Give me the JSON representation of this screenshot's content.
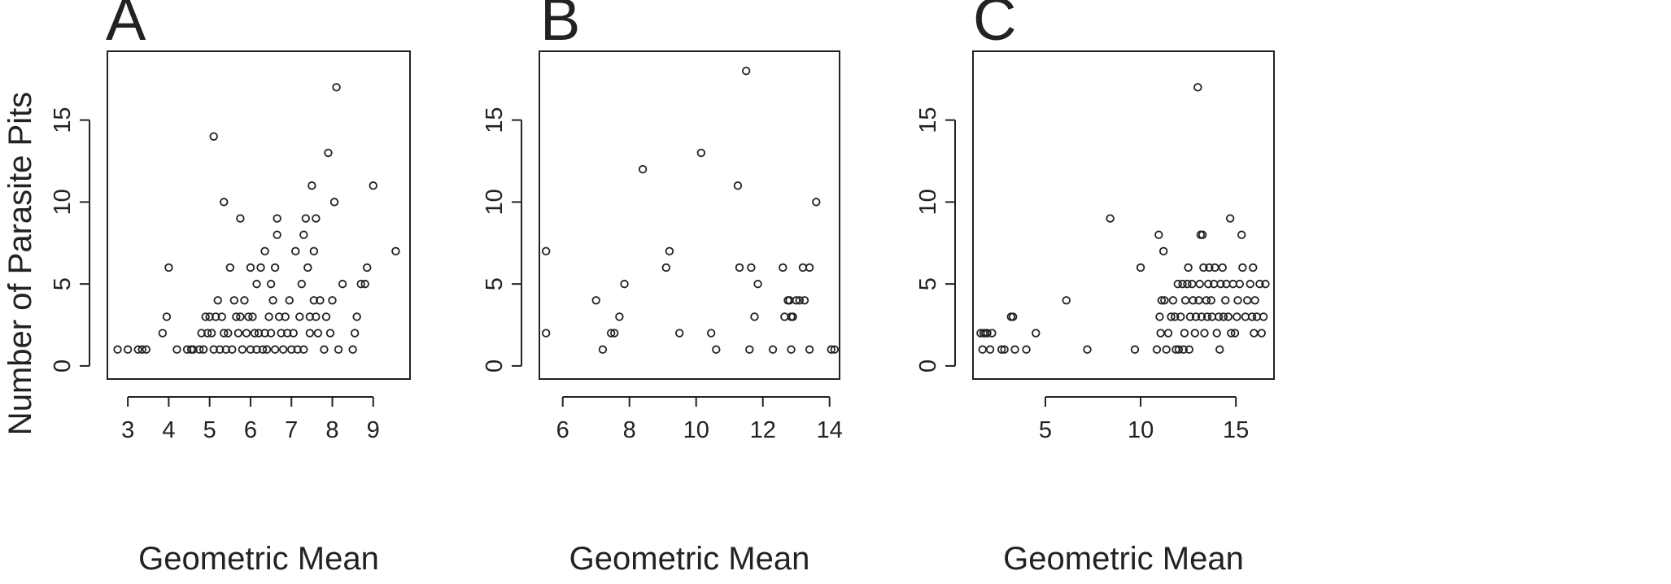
{
  "ylabel": "Number of Parasite Pits",
  "chart_data": [
    {
      "type": "scatter",
      "panel": "A",
      "xlabel": "Geometric Mean",
      "xlim": [
        2.5,
        9.9
      ],
      "ylim": [
        -0.8,
        19.2
      ],
      "xticks": [
        3,
        4,
        5,
        6,
        7,
        8,
        9
      ],
      "yticks": [
        0,
        5,
        10,
        15
      ],
      "points": [
        [
          2.75,
          1
        ],
        [
          3.0,
          1
        ],
        [
          3.25,
          1
        ],
        [
          3.35,
          1
        ],
        [
          3.45,
          1
        ],
        [
          3.85,
          2
        ],
        [
          3.95,
          3
        ],
        [
          4.0,
          6
        ],
        [
          4.2,
          1
        ],
        [
          4.45,
          1
        ],
        [
          4.55,
          1
        ],
        [
          4.6,
          1
        ],
        [
          4.75,
          1
        ],
        [
          4.8,
          2
        ],
        [
          4.85,
          1
        ],
        [
          4.9,
          3
        ],
        [
          4.95,
          2
        ],
        [
          5.0,
          3
        ],
        [
          5.05,
          2
        ],
        [
          5.1,
          1
        ],
        [
          5.1,
          14
        ],
        [
          5.15,
          3
        ],
        [
          5.2,
          4
        ],
        [
          5.25,
          1
        ],
        [
          5.3,
          3
        ],
        [
          5.35,
          10
        ],
        [
          5.35,
          2
        ],
        [
          5.4,
          1
        ],
        [
          5.45,
          2
        ],
        [
          5.5,
          6
        ],
        [
          5.55,
          1
        ],
        [
          5.6,
          4
        ],
        [
          5.65,
          3
        ],
        [
          5.7,
          2
        ],
        [
          5.75,
          9
        ],
        [
          5.75,
          3
        ],
        [
          5.8,
          1
        ],
        [
          5.85,
          4
        ],
        [
          5.9,
          2
        ],
        [
          5.95,
          3
        ],
        [
          6.0,
          6
        ],
        [
          6.0,
          1
        ],
        [
          6.05,
          3
        ],
        [
          6.1,
          2
        ],
        [
          6.15,
          1
        ],
        [
          6.15,
          5
        ],
        [
          6.2,
          2
        ],
        [
          6.25,
          6
        ],
        [
          6.3,
          1
        ],
        [
          6.35,
          2
        ],
        [
          6.35,
          7
        ],
        [
          6.4,
          1
        ],
        [
          6.45,
          3
        ],
        [
          6.5,
          5
        ],
        [
          6.5,
          2
        ],
        [
          6.55,
          4
        ],
        [
          6.6,
          6
        ],
        [
          6.6,
          1
        ],
        [
          6.65,
          9
        ],
        [
          6.65,
          8
        ],
        [
          6.7,
          3
        ],
        [
          6.75,
          2
        ],
        [
          6.8,
          1
        ],
        [
          6.85,
          3
        ],
        [
          6.9,
          2
        ],
        [
          6.95,
          4
        ],
        [
          7.0,
          1
        ],
        [
          7.05,
          2
        ],
        [
          7.1,
          7
        ],
        [
          7.15,
          1
        ],
        [
          7.2,
          3
        ],
        [
          7.25,
          5
        ],
        [
          7.3,
          1
        ],
        [
          7.3,
          8
        ],
        [
          7.35,
          9
        ],
        [
          7.4,
          6
        ],
        [
          7.45,
          3
        ],
        [
          7.45,
          2
        ],
        [
          7.5,
          11
        ],
        [
          7.55,
          7
        ],
        [
          7.55,
          4
        ],
        [
          7.6,
          3
        ],
        [
          7.6,
          9
        ],
        [
          7.65,
          2
        ],
        [
          7.7,
          4
        ],
        [
          7.8,
          1
        ],
        [
          7.85,
          3
        ],
        [
          7.9,
          13
        ],
        [
          7.95,
          2
        ],
        [
          8.0,
          4
        ],
        [
          8.05,
          10
        ],
        [
          8.1,
          17
        ],
        [
          8.15,
          1
        ],
        [
          8.25,
          5
        ],
        [
          8.5,
          1
        ],
        [
          8.55,
          2
        ],
        [
          8.6,
          3
        ],
        [
          8.7,
          5
        ],
        [
          8.8,
          5
        ],
        [
          8.85,
          6
        ],
        [
          9.0,
          11
        ],
        [
          9.55,
          7
        ]
      ]
    },
    {
      "type": "scatter",
      "panel": "B",
      "xlabel": "Geometric Mean",
      "xlim": [
        5.3,
        14.3
      ],
      "ylim": [
        -0.8,
        19.2
      ],
      "xticks": [
        6,
        8,
        10,
        12,
        14
      ],
      "yticks": [
        0,
        5,
        10,
        15
      ],
      "points": [
        [
          5.5,
          7
        ],
        [
          5.5,
          2
        ],
        [
          7.0,
          4
        ],
        [
          7.2,
          1
        ],
        [
          7.45,
          2
        ],
        [
          7.55,
          2
        ],
        [
          7.7,
          3
        ],
        [
          7.85,
          5
        ],
        [
          8.4,
          12
        ],
        [
          9.1,
          6
        ],
        [
          9.2,
          7
        ],
        [
          9.5,
          2
        ],
        [
          10.15,
          13
        ],
        [
          10.45,
          2
        ],
        [
          10.6,
          1
        ],
        [
          11.25,
          11
        ],
        [
          11.3,
          6
        ],
        [
          11.5,
          18
        ],
        [
          11.6,
          1
        ],
        [
          11.65,
          6
        ],
        [
          11.75,
          3
        ],
        [
          11.85,
          5
        ],
        [
          12.3,
          1
        ],
        [
          12.6,
          6
        ],
        [
          12.65,
          3
        ],
        [
          12.75,
          4
        ],
        [
          12.8,
          4
        ],
        [
          12.85,
          1
        ],
        [
          12.85,
          3
        ],
        [
          12.9,
          3
        ],
        [
          13.0,
          4
        ],
        [
          13.1,
          4
        ],
        [
          13.2,
          6
        ],
        [
          13.25,
          4
        ],
        [
          13.4,
          6
        ],
        [
          13.4,
          1
        ],
        [
          13.6,
          10
        ],
        [
          14.05,
          1
        ],
        [
          14.15,
          1
        ]
      ]
    },
    {
      "type": "scatter",
      "panel": "C",
      "xlabel": "Geometric Mean",
      "xlim": [
        1.2,
        17.0
      ],
      "ylim": [
        -0.8,
        19.2
      ],
      "xticks": [
        5,
        10,
        15
      ],
      "yticks": [
        0,
        5,
        10,
        15
      ],
      "points": [
        [
          1.6,
          2
        ],
        [
          1.7,
          1
        ],
        [
          1.75,
          2
        ],
        [
          1.85,
          2
        ],
        [
          1.95,
          2
        ],
        [
          2.1,
          1
        ],
        [
          2.2,
          2
        ],
        [
          2.7,
          1
        ],
        [
          2.85,
          1
        ],
        [
          3.2,
          3
        ],
        [
          3.3,
          3
        ],
        [
          3.4,
          1
        ],
        [
          4.0,
          1
        ],
        [
          4.5,
          2
        ],
        [
          6.1,
          4
        ],
        [
          7.2,
          1
        ],
        [
          8.4,
          9
        ],
        [
          9.7,
          1
        ],
        [
          10.0,
          6
        ],
        [
          10.85,
          1
        ],
        [
          10.95,
          8
        ],
        [
          11.0,
          3
        ],
        [
          11.05,
          2
        ],
        [
          11.1,
          4
        ],
        [
          11.2,
          7
        ],
        [
          11.25,
          4
        ],
        [
          11.35,
          1
        ],
        [
          11.45,
          2
        ],
        [
          11.6,
          3
        ],
        [
          11.7,
          4
        ],
        [
          11.8,
          3
        ],
        [
          11.85,
          1
        ],
        [
          11.95,
          5
        ],
        [
          12.0,
          1
        ],
        [
          12.1,
          3
        ],
        [
          12.2,
          5
        ],
        [
          12.25,
          1
        ],
        [
          12.3,
          2
        ],
        [
          12.35,
          4
        ],
        [
          12.45,
          5
        ],
        [
          12.5,
          6
        ],
        [
          12.55,
          1
        ],
        [
          12.6,
          3
        ],
        [
          12.7,
          5
        ],
        [
          12.75,
          4
        ],
        [
          12.85,
          2
        ],
        [
          12.9,
          3
        ],
        [
          13.0,
          17
        ],
        [
          13.05,
          4
        ],
        [
          13.1,
          5
        ],
        [
          13.15,
          8
        ],
        [
          13.2,
          3
        ],
        [
          13.25,
          8
        ],
        [
          13.3,
          6
        ],
        [
          13.35,
          2
        ],
        [
          13.45,
          4
        ],
        [
          13.5,
          3
        ],
        [
          13.55,
          5
        ],
        [
          13.6,
          6
        ],
        [
          13.7,
          4
        ],
        [
          13.75,
          3
        ],
        [
          13.85,
          5
        ],
        [
          13.9,
          6
        ],
        [
          14.0,
          2
        ],
        [
          14.1,
          3
        ],
        [
          14.15,
          1
        ],
        [
          14.2,
          5
        ],
        [
          14.3,
          6
        ],
        [
          14.35,
          3
        ],
        [
          14.45,
          4
        ],
        [
          14.5,
          5
        ],
        [
          14.6,
          3
        ],
        [
          14.7,
          9
        ],
        [
          14.75,
          2
        ],
        [
          14.85,
          5
        ],
        [
          14.95,
          2
        ],
        [
          15.05,
          3
        ],
        [
          15.1,
          4
        ],
        [
          15.2,
          5
        ],
        [
          15.3,
          8
        ],
        [
          15.35,
          6
        ],
        [
          15.5,
          3
        ],
        [
          15.6,
          4
        ],
        [
          15.75,
          5
        ],
        [
          15.85,
          3
        ],
        [
          15.9,
          6
        ],
        [
          15.95,
          2
        ],
        [
          16.0,
          4
        ],
        [
          16.1,
          3
        ],
        [
          16.25,
          5
        ],
        [
          16.35,
          2
        ],
        [
          16.45,
          3
        ],
        [
          16.55,
          5
        ]
      ]
    }
  ]
}
